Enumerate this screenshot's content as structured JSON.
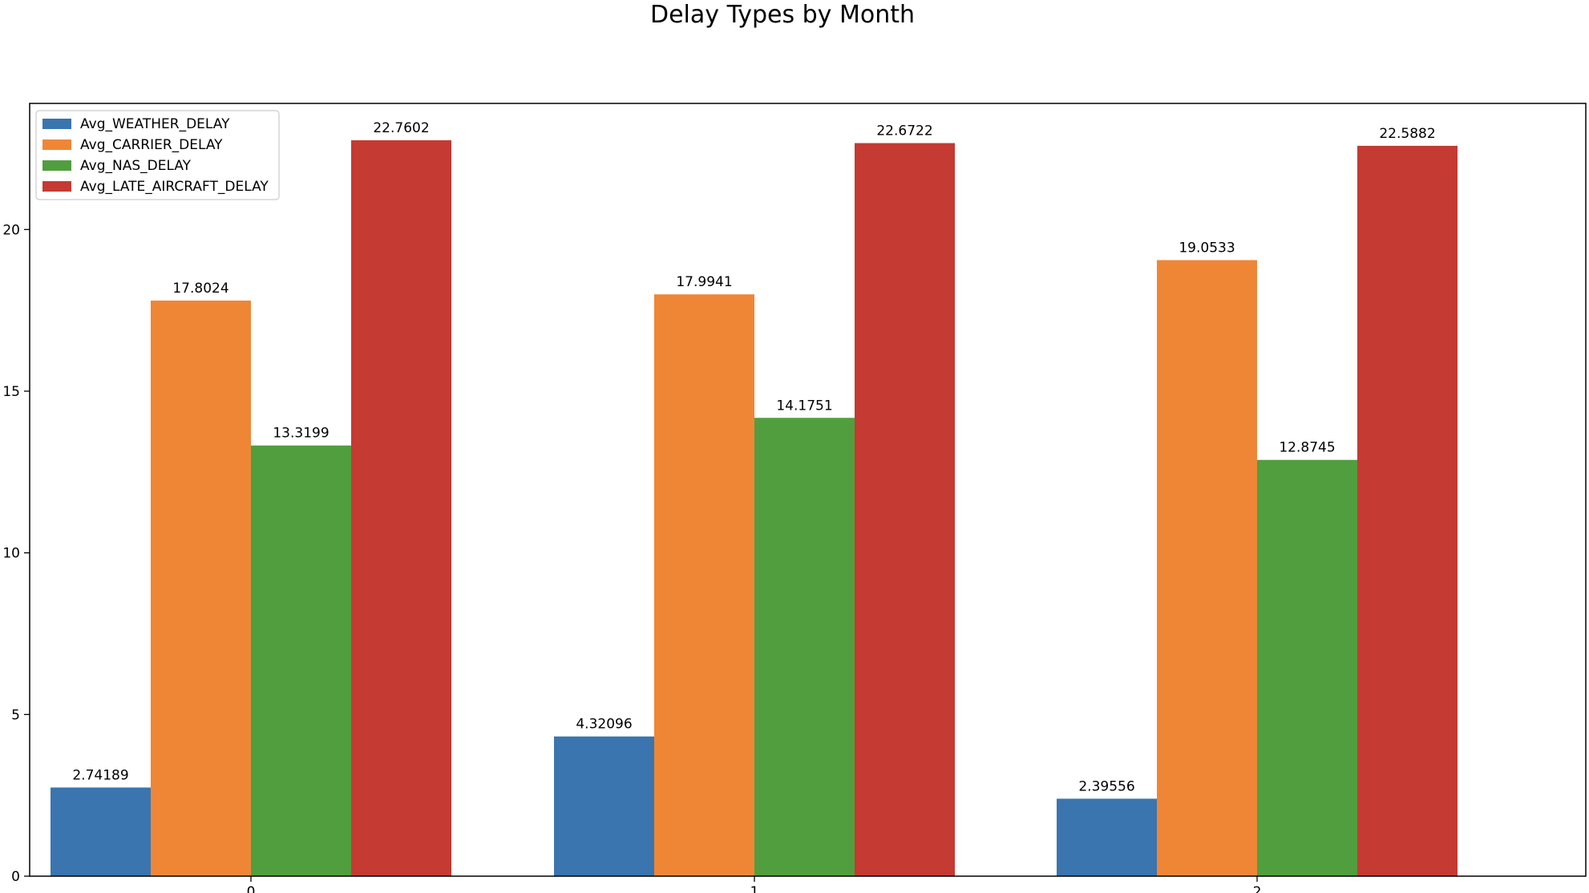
{
  "chart_data": {
    "type": "bar",
    "title": "Delay Types by Month",
    "xlabel": "",
    "ylabel": "",
    "categories": [
      "0",
      "1",
      "2"
    ],
    "series": [
      {
        "name": "Avg_WEATHER_DELAY",
        "color": "#3a75af",
        "values": [
          2.74189,
          4.32096,
          2.39556
        ],
        "labels": [
          "2.74189",
          "4.32096",
          "2.39556"
        ]
      },
      {
        "name": "Avg_CARRIER_DELAY",
        "color": "#ef8636",
        "values": [
          17.8024,
          17.9941,
          19.0533
        ],
        "labels": [
          "17.8024",
          "17.9941",
          "19.0533"
        ]
      },
      {
        "name": "Avg_NAS_DELAY",
        "color": "#519e3e",
        "values": [
          13.3199,
          14.1751,
          12.8745
        ],
        "labels": [
          "13.3199",
          "14.1751",
          "12.8745"
        ]
      },
      {
        "name": "Avg_LATE_AIRCRAFT_DELAY",
        "color": "#c53a32",
        "values": [
          22.7602,
          22.6722,
          22.5882
        ],
        "labels": [
          "22.7602",
          "22.6722",
          "22.5882"
        ]
      }
    ],
    "ylim": [
      0,
      23.9
    ],
    "yticks": [
      0,
      5,
      10,
      15,
      20
    ],
    "legend": "upper-left",
    "grid": false
  }
}
